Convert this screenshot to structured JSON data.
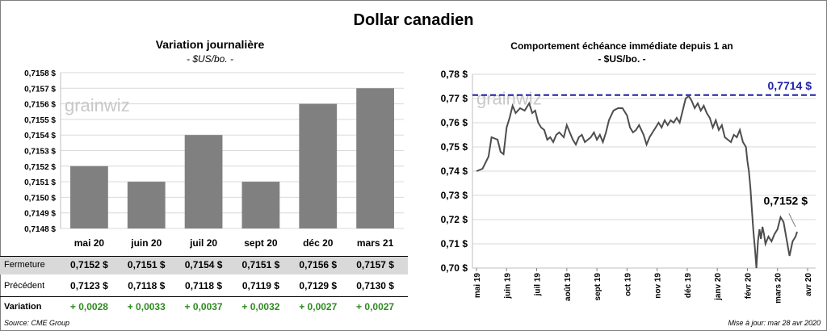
{
  "main_title": "Dollar canadien",
  "left": {
    "title": "Variation  journalière",
    "subtitle": "- $US/bo. -",
    "watermark": "grainwiz",
    "rows": {
      "fermeture_label": "Fermeture",
      "precedent_label": "Précédent",
      "variation_label": "Variation"
    },
    "table": {
      "fermeture": [
        "0,7152  $",
        "0,7151  $",
        "0,7154  $",
        "0,7151  $",
        "0,7156  $",
        "0,7157  $"
      ],
      "precedent": [
        "0,7123  $",
        "0,7118  $",
        "0,7118  $",
        "0,7119  $",
        "0,7129  $",
        "0,7130  $"
      ],
      "variation": [
        "+ 0,0028",
        "+ 0,0033",
        "+ 0,0037",
        "+ 0,0032",
        "+ 0,0027",
        "+ 0,0027"
      ]
    },
    "source": "Source: CME Group"
  },
  "right": {
    "title": "Comportement échéance immédiate depuis 1 an",
    "subtitle": "- $US/bo. -",
    "watermark": "grainwiz",
    "high_label": "0,7714 $",
    "last_label": "0,7152 $",
    "updated": "Mise à jour: mar 28 avr 2020"
  },
  "chart_data": [
    {
      "type": "bar",
      "categories": [
        "mai 20",
        "juin 20",
        "juil 20",
        "sept 20",
        "déc 20",
        "mars 21"
      ],
      "values": [
        0.7152,
        0.7151,
        0.7154,
        0.7151,
        0.7156,
        0.7157
      ],
      "ylim": [
        0.7148,
        0.7158
      ],
      "yticks": [
        "0,7148 $",
        "0,7149 $",
        "0,7150 $",
        "0,7151 $",
        "0,7152 $",
        "0,7153 $",
        "0,7154 $",
        "0,7155 $",
        "0,7156 $",
        "0,7157 $",
        "0,7158 $"
      ],
      "grid": true,
      "bar_color": "#808080"
    },
    {
      "type": "line",
      "ylim": [
        0.7,
        0.78
      ],
      "yticks": [
        "0,70 $",
        "0,71 $",
        "0,72 $",
        "0,73 $",
        "0,74 $",
        "0,75 $",
        "0,76 $",
        "0,77 $",
        "0,78 $"
      ],
      "xticks": [
        "mai 19",
        "juin 19",
        "juil 19",
        "août 19",
        "sept 19",
        "oct 19",
        "nov 19",
        "déc 19",
        "janv 20",
        "févr 20",
        "mars 20",
        "avr 20"
      ],
      "grid": true,
      "reference_line": 0.7714,
      "line_color": "#4d4d4d",
      "reference_color": "#1f1fa8",
      "points": [
        [
          0,
          0.74
        ],
        [
          0.2,
          0.741
        ],
        [
          0.4,
          0.746
        ],
        [
          0.5,
          0.754
        ],
        [
          0.7,
          0.753
        ],
        [
          0.8,
          0.748
        ],
        [
          0.9,
          0.747
        ],
        [
          1.0,
          0.758
        ],
        [
          1.1,
          0.762
        ],
        [
          1.2,
          0.767
        ],
        [
          1.3,
          0.764
        ],
        [
          1.45,
          0.766
        ],
        [
          1.6,
          0.765
        ],
        [
          1.75,
          0.768
        ],
        [
          1.85,
          0.764
        ],
        [
          1.95,
          0.765
        ],
        [
          2.05,
          0.76
        ],
        [
          2.15,
          0.758
        ],
        [
          2.25,
          0.757
        ],
        [
          2.35,
          0.753
        ],
        [
          2.45,
          0.754
        ],
        [
          2.55,
          0.752
        ],
        [
          2.65,
          0.755
        ],
        [
          2.75,
          0.756
        ],
        [
          2.9,
          0.754
        ],
        [
          3.0,
          0.759
        ],
        [
          3.1,
          0.756
        ],
        [
          3.2,
          0.753
        ],
        [
          3.3,
          0.751
        ],
        [
          3.4,
          0.754
        ],
        [
          3.5,
          0.755
        ],
        [
          3.6,
          0.752
        ],
        [
          3.7,
          0.753
        ],
        [
          3.8,
          0.754
        ],
        [
          3.9,
          0.756
        ],
        [
          4.0,
          0.753
        ],
        [
          4.1,
          0.755
        ],
        [
          4.2,
          0.752
        ],
        [
          4.3,
          0.756
        ],
        [
          4.4,
          0.761
        ],
        [
          4.55,
          0.765
        ],
        [
          4.7,
          0.766
        ],
        [
          4.85,
          0.766
        ],
        [
          5.0,
          0.763
        ],
        [
          5.1,
          0.758
        ],
        [
          5.2,
          0.756
        ],
        [
          5.3,
          0.757
        ],
        [
          5.4,
          0.759
        ],
        [
          5.55,
          0.755
        ],
        [
          5.65,
          0.751
        ],
        [
          5.75,
          0.754
        ],
        [
          5.85,
          0.756
        ],
        [
          5.95,
          0.758
        ],
        [
          6.05,
          0.76
        ],
        [
          6.15,
          0.758
        ],
        [
          6.25,
          0.761
        ],
        [
          6.35,
          0.759
        ],
        [
          6.45,
          0.761
        ],
        [
          6.55,
          0.76
        ],
        [
          6.65,
          0.762
        ],
        [
          6.75,
          0.76
        ],
        [
          6.85,
          0.765
        ],
        [
          6.95,
          0.77
        ],
        [
          7.05,
          0.771
        ],
        [
          7.15,
          0.769
        ],
        [
          7.25,
          0.766
        ],
        [
          7.35,
          0.768
        ],
        [
          7.45,
          0.765
        ],
        [
          7.55,
          0.767
        ],
        [
          7.65,
          0.764
        ],
        [
          7.75,
          0.762
        ],
        [
          7.85,
          0.758
        ],
        [
          7.95,
          0.761
        ],
        [
          8.05,
          0.757
        ],
        [
          8.15,
          0.759
        ],
        [
          8.25,
          0.754
        ],
        [
          8.35,
          0.753
        ],
        [
          8.45,
          0.752
        ],
        [
          8.55,
          0.755
        ],
        [
          8.65,
          0.754
        ],
        [
          8.75,
          0.757
        ],
        [
          8.85,
          0.752
        ],
        [
          8.95,
          0.75
        ],
        [
          9.0,
          0.744
        ],
        [
          9.05,
          0.74
        ],
        [
          9.1,
          0.733
        ],
        [
          9.15,
          0.724
        ],
        [
          9.2,
          0.715
        ],
        [
          9.25,
          0.708
        ],
        [
          9.3,
          0.7
        ],
        [
          9.35,
          0.711
        ],
        [
          9.4,
          0.716
        ],
        [
          9.45,
          0.712
        ],
        [
          9.5,
          0.717
        ],
        [
          9.55,
          0.714
        ],
        [
          9.6,
          0.71
        ],
        [
          9.7,
          0.713
        ],
        [
          9.8,
          0.711
        ],
        [
          9.9,
          0.714
        ],
        [
          10.0,
          0.716
        ],
        [
          10.1,
          0.721
        ],
        [
          10.2,
          0.719
        ],
        [
          10.3,
          0.712
        ],
        [
          10.4,
          0.705
        ],
        [
          10.5,
          0.711
        ],
        [
          10.6,
          0.713
        ],
        [
          10.65,
          0.715
        ]
      ]
    }
  ]
}
